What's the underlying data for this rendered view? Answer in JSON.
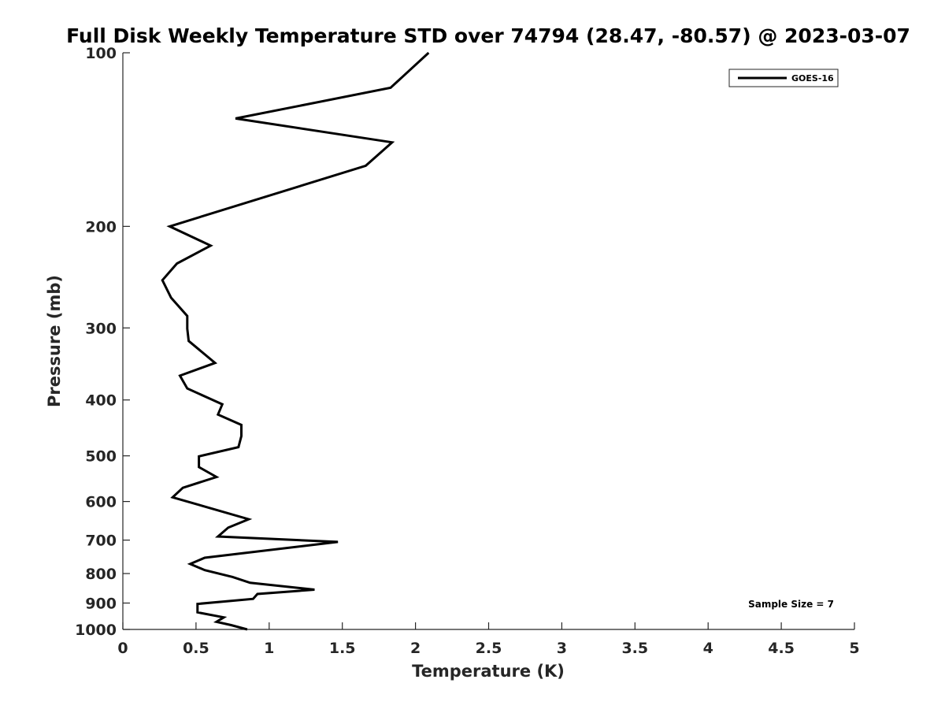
{
  "chart_data": {
    "type": "line",
    "title": "Full Disk Weekly Temperature STD over 74794 (28.47, -80.57) @ 2023-03-07",
    "xlabel": "Temperature (K)",
    "ylabel": "Pressure (mb)",
    "xlim": [
      0,
      5
    ],
    "ylim": [
      100,
      1000
    ],
    "y_scale": "log",
    "y_reversed": true,
    "x_ticks": [
      "0",
      "0.5",
      "1",
      "1.5",
      "2",
      "2.5",
      "3",
      "3.5",
      "4",
      "4.5",
      "5"
    ],
    "y_ticks": [
      "100",
      "200",
      "300",
      "400",
      "500",
      "600",
      "700",
      "800",
      "900",
      "1000"
    ],
    "grid": false,
    "legend": {
      "position": "top-right",
      "entries": [
        "GOES-16"
      ]
    },
    "annotation": "Sample Size = 7",
    "series": [
      {
        "name": "GOES-16",
        "color": "#000000",
        "points": [
          [
            2.09,
            100
          ],
          [
            1.83,
            115
          ],
          [
            0.77,
            130
          ],
          [
            1.84,
            143
          ],
          [
            1.66,
            157
          ],
          [
            0.32,
            200
          ],
          [
            0.6,
            216
          ],
          [
            0.37,
            232
          ],
          [
            0.27,
            248
          ],
          [
            0.33,
            266
          ],
          [
            0.44,
            286
          ],
          [
            0.44,
            301
          ],
          [
            0.45,
            316
          ],
          [
            0.63,
            345
          ],
          [
            0.39,
            363
          ],
          [
            0.44,
            382
          ],
          [
            0.68,
            407
          ],
          [
            0.65,
            424
          ],
          [
            0.81,
            442
          ],
          [
            0.81,
            462
          ],
          [
            0.79,
            483
          ],
          [
            0.52,
            501
          ],
          [
            0.52,
            523
          ],
          [
            0.64,
            544
          ],
          [
            0.41,
            568
          ],
          [
            0.34,
            590
          ],
          [
            0.86,
            644
          ],
          [
            0.72,
            666
          ],
          [
            0.65,
            690
          ],
          [
            1.47,
            705
          ],
          [
            0.56,
            751
          ],
          [
            0.46,
            770
          ],
          [
            0.56,
            789
          ],
          [
            0.75,
            811
          ],
          [
            0.87,
            830
          ],
          [
            1.31,
            853
          ],
          [
            0.92,
            868
          ],
          [
            0.89,
            885
          ],
          [
            0.51,
            903
          ],
          [
            0.51,
            934
          ],
          [
            0.69,
            953
          ],
          [
            0.64,
            970
          ],
          [
            0.74,
            983
          ],
          [
            0.85,
            1000
          ]
        ]
      }
    ]
  }
}
